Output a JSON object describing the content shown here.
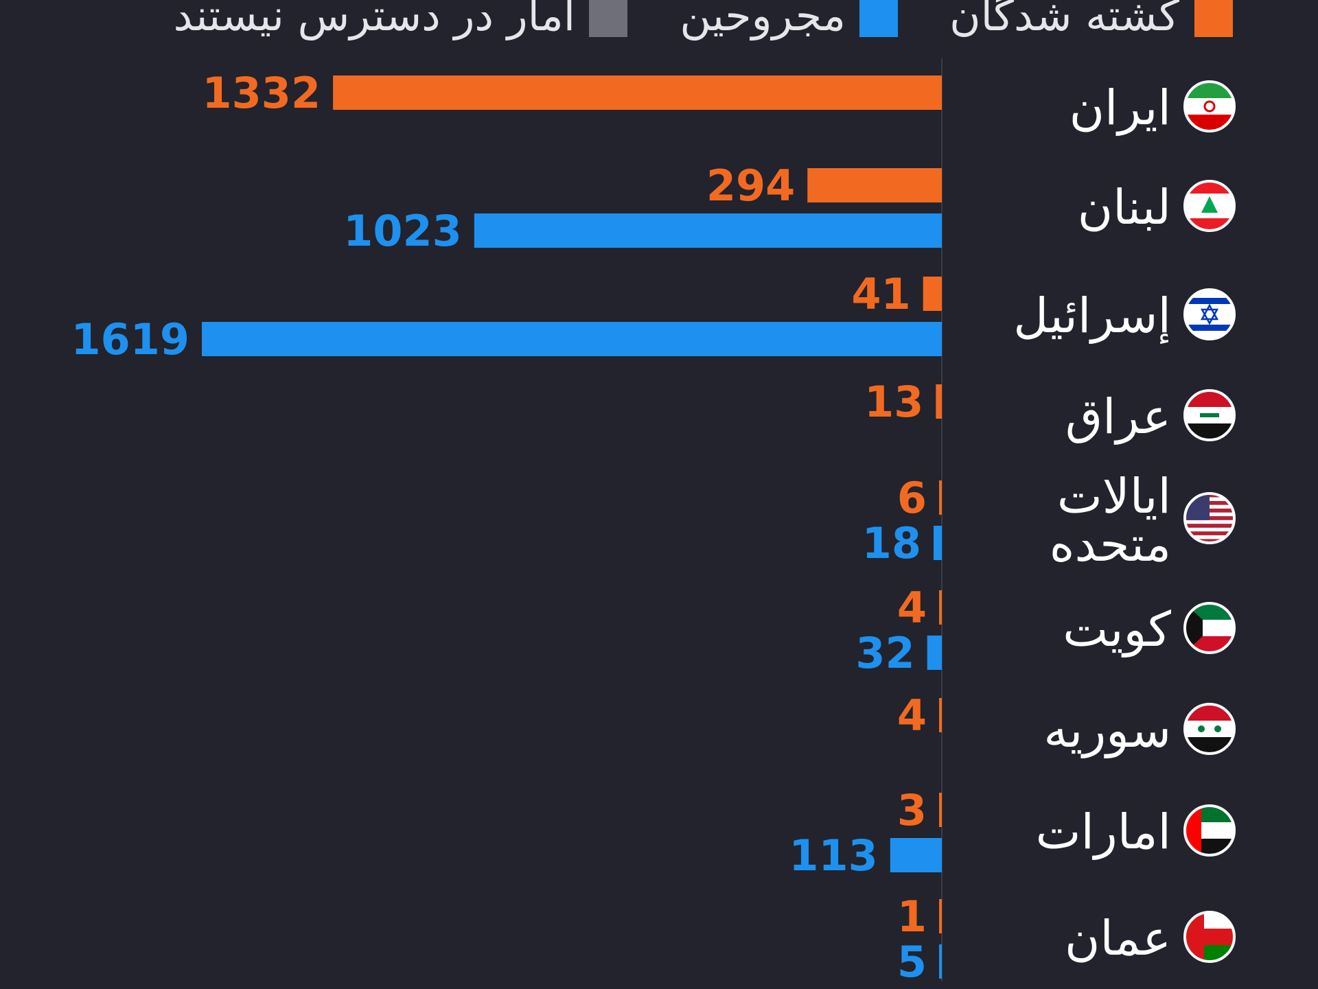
{
  "colors": {
    "background": "#22232c",
    "killed": "#f26a21",
    "injured": "#1e90ef",
    "unavailable": "#6e6f78",
    "text": "#ffffff",
    "axis": "#3a3b45"
  },
  "legend": [
    {
      "key": "killed",
      "label": "کشته شدگان",
      "color": "#f26a21"
    },
    {
      "key": "injured",
      "label": "مجروحین",
      "color": "#1e90ef"
    },
    {
      "key": "unavailable",
      "label": "آمار در دسترس نیستند",
      "color": "#6e6f78"
    }
  ],
  "chart_data": {
    "type": "bar",
    "orientation": "horizontal",
    "categories": [
      "ایران",
      "لبنان",
      "إسرائیل",
      "عراق",
      "ایالات متحده",
      "کویت",
      "سوریه",
      "امارات",
      "عمان"
    ],
    "series": [
      {
        "name": "کشته شدگان",
        "values": [
          1332,
          294,
          41,
          13,
          6,
          4,
          4,
          3,
          1
        ]
      },
      {
        "name": "مجروحین",
        "values": [
          null,
          1023,
          1619,
          null,
          18,
          32,
          null,
          113,
          5
        ]
      }
    ],
    "xlim": [
      0,
      1619
    ],
    "legend_position": "top-right",
    "grid": false
  },
  "rows": [
    {
      "label": "ایران",
      "flag": "iran-flag-icon",
      "killed": "1332",
      "injured": null
    },
    {
      "label": "لبنان",
      "flag": "lebanon-flag-icon",
      "killed": "294",
      "injured": "1023"
    },
    {
      "label": "إسرائیل",
      "flag": "israel-flag-icon",
      "killed": "41",
      "injured": "1619"
    },
    {
      "label": "عراق",
      "flag": "iraq-flag-icon",
      "killed": "13",
      "injured": null
    },
    {
      "label": "ایالات متحده",
      "flag": "usa-flag-icon",
      "killed": "6",
      "injured": "18"
    },
    {
      "label": "کویت",
      "flag": "kuwait-flag-icon",
      "killed": "4",
      "injured": "32"
    },
    {
      "label": "سوریه",
      "flag": "syria-flag-icon",
      "killed": "4",
      "injured": null
    },
    {
      "label": "امارات",
      "flag": "uae-flag-icon",
      "killed": "3",
      "injured": "113"
    },
    {
      "label": "عمان",
      "flag": "oman-flag-icon",
      "killed": "1",
      "injured": "5"
    }
  ]
}
